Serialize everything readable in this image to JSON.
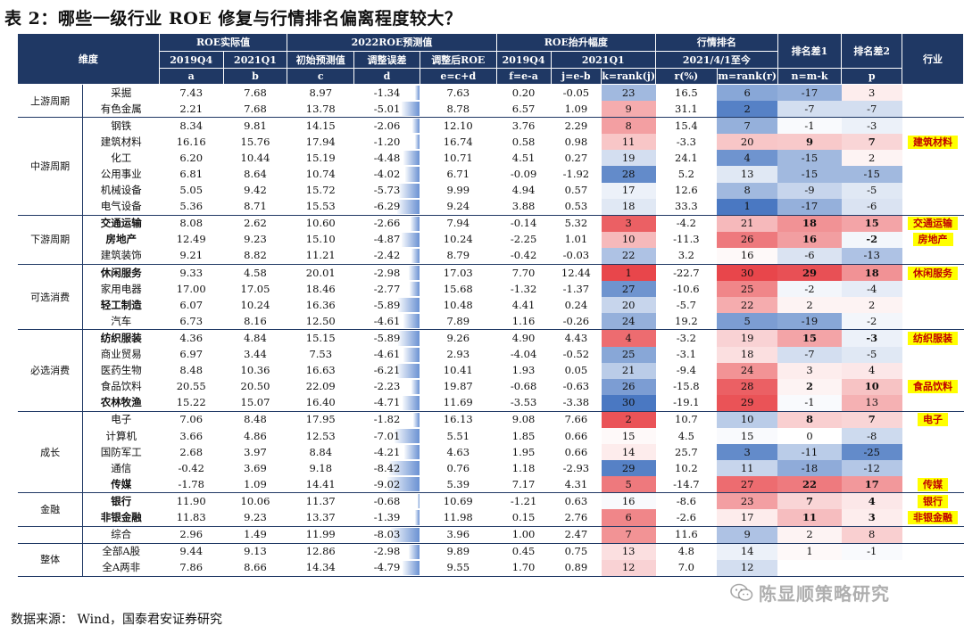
{
  "title": "表 2：哪些一级行业 ROE 修复与行情排名偏离程度较大？",
  "footer": "数据来源：  Wind，国泰君安证券研究",
  "watermark": "陈显顺策略研究",
  "header": {
    "dimension": "维度",
    "industry": "行业",
    "group_roe_actual": "ROE实际值",
    "group_roe_forecast": "2022ROE预测值",
    "group_roe_rank": "ROE抬升幅度",
    "group_market_rank": "行情排名",
    "rank_diff1": "排名差1",
    "rank_diff2": "排名差2",
    "sub": [
      "2019Q4",
      "2021Q1",
      "初始预测值",
      "调整误差",
      "调整后ROE",
      "2019Q4",
      "2021Q1",
      "2021/4/1至今"
    ],
    "letters": [
      "a",
      "b",
      "c",
      "d",
      "e=c+d",
      "f=e-a",
      "j=e-b",
      "k=rank(j)",
      "r(%)",
      "m=rank(r)",
      "n=m-k",
      "p"
    ]
  },
  "groups": [
    {
      "name": "上游周期",
      "rows": [
        {
          "sector": "采掘",
          "bold": false,
          "a": "7.43",
          "b": "7.68",
          "c": "8.97",
          "d": "-1.34",
          "e": "7.63",
          "f": "0.20",
          "j": "-0.05",
          "k": "23",
          "r": "16.5",
          "m": "6",
          "n": "-17",
          "p": "3",
          "tag": ""
        },
        {
          "sector": "有色金属",
          "bold": false,
          "a": "2.21",
          "b": "7.68",
          "c": "13.78",
          "d": "-5.01",
          "e": "8.78",
          "f": "6.57",
          "j": "1.09",
          "k": "9",
          "r": "31.1",
          "m": "2",
          "n": "-7",
          "p": "-7",
          "tag": ""
        }
      ]
    },
    {
      "name": "中游周期",
      "rows": [
        {
          "sector": "钢铁",
          "bold": false,
          "a": "8.34",
          "b": "9.81",
          "c": "14.15",
          "d": "-2.06",
          "e": "12.10",
          "f": "3.76",
          "j": "2.29",
          "k": "8",
          "r": "15.4",
          "m": "7",
          "n": "-1",
          "p": "-3",
          "tag": ""
        },
        {
          "sector": "建筑材料",
          "bold": false,
          "a": "16.16",
          "b": "15.76",
          "c": "17.94",
          "d": "-1.20",
          "e": "16.74",
          "f": "0.58",
          "j": "0.98",
          "k": "11",
          "r": "-3.3",
          "m": "20",
          "n": "9",
          "p": "7",
          "tag": "建筑材料"
        },
        {
          "sector": "化工",
          "bold": false,
          "a": "6.20",
          "b": "10.44",
          "c": "15.19",
          "d": "-4.48",
          "e": "10.71",
          "f": "4.51",
          "j": "0.27",
          "k": "19",
          "r": "24.1",
          "m": "4",
          "n": "-15",
          "p": "2",
          "tag": ""
        },
        {
          "sector": "公用事业",
          "bold": false,
          "a": "6.81",
          "b": "8.64",
          "c": "10.74",
          "d": "-4.02",
          "e": "6.71",
          "f": "-0.09",
          "j": "-1.92",
          "k": "28",
          "r": "5.2",
          "m": "13",
          "n": "-15",
          "p": "-15",
          "tag": ""
        },
        {
          "sector": "机械设备",
          "bold": false,
          "a": "5.05",
          "b": "9.42",
          "c": "15.72",
          "d": "-5.73",
          "e": "9.99",
          "f": "4.94",
          "j": "0.57",
          "k": "17",
          "r": "12.6",
          "m": "8",
          "n": "-9",
          "p": "-5",
          "tag": ""
        },
        {
          "sector": "电气设备",
          "bold": false,
          "a": "5.36",
          "b": "8.71",
          "c": "15.53",
          "d": "-6.29",
          "e": "9.24",
          "f": "3.88",
          "j": "0.53",
          "k": "18",
          "r": "33.3",
          "m": "1",
          "n": "-17",
          "p": "-6",
          "tag": ""
        }
      ]
    },
    {
      "name": "下游周期",
      "rows": [
        {
          "sector": "交通运输",
          "bold": true,
          "a": "8.08",
          "b": "2.62",
          "c": "10.60",
          "d": "-2.66",
          "e": "7.94",
          "f": "-0.14",
          "j": "5.32",
          "k": "3",
          "r": "-4.2",
          "m": "21",
          "n": "18",
          "p": "15",
          "tag": "交通运输"
        },
        {
          "sector": "房地产",
          "bold": true,
          "a": "12.49",
          "b": "9.23",
          "c": "15.10",
          "d": "-4.87",
          "e": "10.24",
          "f": "-2.25",
          "j": "1.01",
          "k": "10",
          "r": "-11.3",
          "m": "26",
          "n": "16",
          "p": "-2",
          "tag": "房地产"
        },
        {
          "sector": "建筑装饰",
          "bold": false,
          "a": "9.21",
          "b": "8.82",
          "c": "11.21",
          "d": "-2.42",
          "e": "8.79",
          "f": "-0.42",
          "j": "-0.03",
          "k": "22",
          "r": "3.2",
          "m": "16",
          "n": "-6",
          "p": "-13",
          "tag": ""
        }
      ]
    },
    {
      "name": "可选消费",
      "rows": [
        {
          "sector": "休闲服务",
          "bold": true,
          "a": "9.33",
          "b": "4.58",
          "c": "20.01",
          "d": "-2.98",
          "e": "17.03",
          "f": "7.70",
          "j": "12.44",
          "k": "1",
          "r": "-22.7",
          "m": "30",
          "n": "29",
          "p": "18",
          "tag": "休闲服务"
        },
        {
          "sector": "家用电器",
          "bold": false,
          "a": "17.00",
          "b": "17.05",
          "c": "18.46",
          "d": "-2.77",
          "e": "15.68",
          "f": "-1.32",
          "j": "-1.37",
          "k": "27",
          "r": "-10.6",
          "m": "25",
          "n": "-2",
          "p": "-4",
          "tag": ""
        },
        {
          "sector": "轻工制造",
          "bold": true,
          "a": "6.07",
          "b": "10.24",
          "c": "16.36",
          "d": "-5.89",
          "e": "10.48",
          "f": "4.41",
          "j": "0.24",
          "k": "20",
          "r": "-5.7",
          "m": "22",
          "n": "2",
          "p": "2",
          "tag": ""
        },
        {
          "sector": "汽车",
          "bold": false,
          "a": "6.73",
          "b": "8.16",
          "c": "12.50",
          "d": "-4.61",
          "e": "7.89",
          "f": "1.16",
          "j": "-0.26",
          "k": "24",
          "r": "19.2",
          "m": "5",
          "n": "-19",
          "p": "-2",
          "tag": ""
        }
      ]
    },
    {
      "name": "必选消费",
      "rows": [
        {
          "sector": "纺织服装",
          "bold": true,
          "a": "4.36",
          "b": "4.84",
          "c": "15.15",
          "d": "-5.89",
          "e": "9.26",
          "f": "4.90",
          "j": "4.43",
          "k": "4",
          "r": "-3.2",
          "m": "19",
          "n": "15",
          "p": "-3",
          "tag": "纺织服装"
        },
        {
          "sector": "商业贸易",
          "bold": false,
          "a": "6.97",
          "b": "3.44",
          "c": "7.53",
          "d": "-4.61",
          "e": "2.93",
          "f": "-4.04",
          "j": "-0.52",
          "k": "25",
          "r": "-3.1",
          "m": "18",
          "n": "-7",
          "p": "-5",
          "tag": ""
        },
        {
          "sector": "医药生物",
          "bold": false,
          "a": "8.48",
          "b": "10.36",
          "c": "16.63",
          "d": "-6.21",
          "e": "10.41",
          "f": "1.93",
          "j": "0.05",
          "k": "21",
          "r": "-9.4",
          "m": "24",
          "n": "3",
          "p": "4",
          "tag": ""
        },
        {
          "sector": "食品饮料",
          "bold": false,
          "a": "20.55",
          "b": "20.50",
          "c": "22.09",
          "d": "-2.23",
          "e": "19.87",
          "f": "-0.68",
          "j": "-0.63",
          "k": "26",
          "r": "-15.8",
          "m": "28",
          "n": "2",
          "p": "10",
          "tag": "食品饮料"
        },
        {
          "sector": "农林牧渔",
          "bold": true,
          "a": "15.22",
          "b": "15.07",
          "c": "16.40",
          "d": "-4.71",
          "e": "11.69",
          "f": "-3.53",
          "j": "-3.38",
          "k": "30",
          "r": "-19.1",
          "m": "29",
          "n": "-1",
          "p": "13",
          "tag": ""
        }
      ]
    },
    {
      "name": "成长",
      "rows": [
        {
          "sector": "电子",
          "bold": false,
          "a": "7.06",
          "b": "8.48",
          "c": "17.95",
          "d": "-1.82",
          "e": "16.13",
          "f": "9.08",
          "j": "7.66",
          "k": "2",
          "r": "10.7",
          "m": "10",
          "n": "8",
          "p": "7",
          "tag": "电子"
        },
        {
          "sector": "计算机",
          "bold": false,
          "a": "3.66",
          "b": "4.86",
          "c": "12.53",
          "d": "-7.01",
          "e": "5.51",
          "f": "1.85",
          "j": "0.66",
          "k": "15",
          "r": "4.5",
          "m": "15",
          "n": "0",
          "p": "-8",
          "tag": ""
        },
        {
          "sector": "国防军工",
          "bold": false,
          "a": "2.68",
          "b": "3.97",
          "c": "8.84",
          "d": "-4.21",
          "e": "4.63",
          "f": "1.95",
          "j": "0.66",
          "k": "14",
          "r": "25.7",
          "m": "3",
          "n": "-11",
          "p": "-25",
          "tag": ""
        },
        {
          "sector": "通信",
          "bold": false,
          "a": "-0.42",
          "b": "3.69",
          "c": "9.18",
          "d": "-8.42",
          "e": "0.76",
          "f": "1.18",
          "j": "-2.93",
          "k": "29",
          "r": "10.2",
          "m": "11",
          "n": "-18",
          "p": "-12",
          "tag": ""
        },
        {
          "sector": "传媒",
          "bold": true,
          "a": "-1.78",
          "b": "1.09",
          "c": "14.41",
          "d": "-9.02",
          "e": "5.39",
          "f": "7.17",
          "j": "4.31",
          "k": "5",
          "r": "-14.7",
          "m": "27",
          "n": "22",
          "p": "17",
          "tag": "传媒"
        }
      ]
    },
    {
      "name": "金融",
      "rows": [
        {
          "sector": "银行",
          "bold": true,
          "a": "11.90",
          "b": "10.06",
          "c": "11.37",
          "d": "-0.68",
          "e": "10.69",
          "f": "-1.21",
          "j": "0.63",
          "k": "16",
          "r": "-8.6",
          "m": "23",
          "n": "7",
          "p": "4",
          "tag": "银行"
        },
        {
          "sector": "非银金融",
          "bold": true,
          "a": "11.83",
          "b": "9.23",
          "c": "13.37",
          "d": "-1.39",
          "e": "11.98",
          "f": "0.15",
          "j": "2.76",
          "k": "6",
          "r": "-2.6",
          "m": "17",
          "n": "11",
          "p": "3",
          "tag": "非银金融"
        }
      ]
    },
    {
      "name": "",
      "rows": [
        {
          "sector": "综合",
          "bold": false,
          "a": "2.96",
          "b": "1.49",
          "c": "11.99",
          "d": "-8.03",
          "e": "3.96",
          "f": "1.00",
          "j": "2.47",
          "k": "7",
          "r": "11.6",
          "m": "9",
          "n": "2",
          "p": "8",
          "tag": ""
        }
      ]
    },
    {
      "name": "整体",
      "rows": [
        {
          "sector": "全部A股",
          "bold": false,
          "a": "9.44",
          "b": "9.13",
          "c": "12.86",
          "d": "-2.98",
          "e": "9.89",
          "f": "0.45",
          "j": "0.75",
          "k": "13",
          "r": "4.8",
          "m": "14",
          "n": "1",
          "p": "-1",
          "tag": ""
        },
        {
          "sector": "全A两非",
          "bold": false,
          "a": "7.86",
          "b": "8.66",
          "c": "14.34",
          "d": "-4.79",
          "e": "9.55",
          "f": "1.70",
          "j": "0.89",
          "k": "12",
          "r": "7.0",
          "m": "12",
          "n": "",
          "p": "",
          "tag": ""
        }
      ]
    }
  ],
  "colors": {
    "header_bg": "#1f3864",
    "tag_bg": "#ffff00",
    "tag_text": "#c00000",
    "rank_red": "#e8464b",
    "rank_blue": "#4a78c2",
    "bar_blue": "#3d70c5"
  }
}
